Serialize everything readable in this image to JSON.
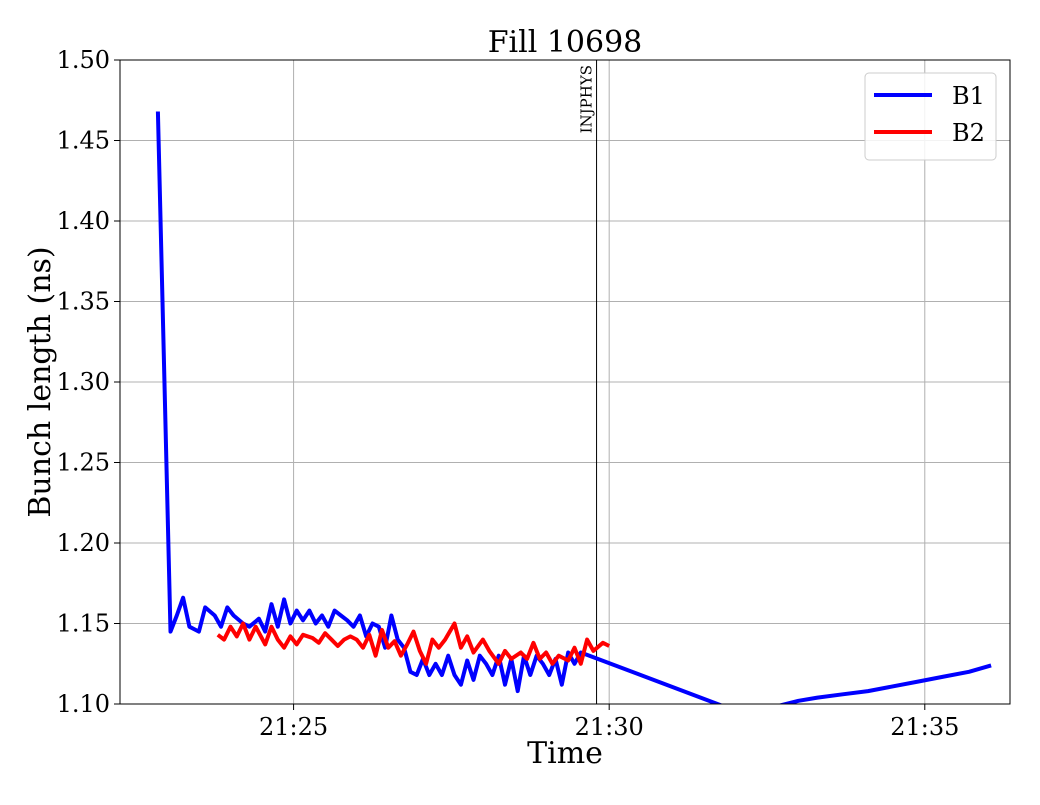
{
  "chart_data": {
    "type": "line",
    "title": "Fill 10698",
    "xlabel": "Time",
    "ylabel": "Bunch length (ns)",
    "x_unit": "minutes after 21:00",
    "xlim": [
      22.25,
      36.35
    ],
    "ylim": [
      1.1,
      1.5
    ],
    "x_ticks": [
      {
        "value": 25,
        "label": "21:25"
      },
      {
        "value": 30,
        "label": "21:30"
      },
      {
        "value": 35,
        "label": "21:35"
      }
    ],
    "y_ticks": [
      {
        "value": 1.1,
        "label": "1.10"
      },
      {
        "value": 1.15,
        "label": "1.15"
      },
      {
        "value": 1.2,
        "label": "1.20"
      },
      {
        "value": 1.25,
        "label": "1.25"
      },
      {
        "value": 1.3,
        "label": "1.30"
      },
      {
        "value": 1.35,
        "label": "1.35"
      },
      {
        "value": 1.4,
        "label": "1.40"
      },
      {
        "value": 1.45,
        "label": "1.45"
      },
      {
        "value": 1.5,
        "label": "1.50"
      }
    ],
    "grid": true,
    "legend_position": "top-right",
    "vertical_markers": [
      {
        "x": 29.8,
        "label": "INJPHYS"
      }
    ],
    "series": [
      {
        "name": "B1",
        "color": "#0000ff",
        "points": [
          [
            22.85,
            1.468
          ],
          [
            23.05,
            1.145
          ],
          [
            23.15,
            1.155
          ],
          [
            23.25,
            1.166
          ],
          [
            23.35,
            1.148
          ],
          [
            23.5,
            1.145
          ],
          [
            23.6,
            1.16
          ],
          [
            23.75,
            1.155
          ],
          [
            23.85,
            1.148
          ],
          [
            23.95,
            1.16
          ],
          [
            24.05,
            1.155
          ],
          [
            24.2,
            1.15
          ],
          [
            24.3,
            1.148
          ],
          [
            24.45,
            1.153
          ],
          [
            24.55,
            1.145
          ],
          [
            24.65,
            1.162
          ],
          [
            24.75,
            1.148
          ],
          [
            24.85,
            1.165
          ],
          [
            24.95,
            1.15
          ],
          [
            25.05,
            1.158
          ],
          [
            25.15,
            1.152
          ],
          [
            25.25,
            1.158
          ],
          [
            25.35,
            1.15
          ],
          [
            25.45,
            1.155
          ],
          [
            25.55,
            1.148
          ],
          [
            25.65,
            1.158
          ],
          [
            25.75,
            1.155
          ],
          [
            25.85,
            1.152
          ],
          [
            25.95,
            1.148
          ],
          [
            26.05,
            1.155
          ],
          [
            26.15,
            1.142
          ],
          [
            26.25,
            1.15
          ],
          [
            26.35,
            1.148
          ],
          [
            26.45,
            1.135
          ],
          [
            26.55,
            1.155
          ],
          [
            26.65,
            1.14
          ],
          [
            26.75,
            1.135
          ],
          [
            26.85,
            1.12
          ],
          [
            26.95,
            1.118
          ],
          [
            27.05,
            1.128
          ],
          [
            27.15,
            1.118
          ],
          [
            27.25,
            1.125
          ],
          [
            27.35,
            1.118
          ],
          [
            27.45,
            1.13
          ],
          [
            27.55,
            1.118
          ],
          [
            27.65,
            1.112
          ],
          [
            27.75,
            1.127
          ],
          [
            27.85,
            1.115
          ],
          [
            27.95,
            1.13
          ],
          [
            28.05,
            1.125
          ],
          [
            28.15,
            1.118
          ],
          [
            28.25,
            1.13
          ],
          [
            28.35,
            1.112
          ],
          [
            28.45,
            1.128
          ],
          [
            28.55,
            1.108
          ],
          [
            28.65,
            1.13
          ],
          [
            28.75,
            1.118
          ],
          [
            28.85,
            1.13
          ],
          [
            28.95,
            1.125
          ],
          [
            29.05,
            1.118
          ],
          [
            29.15,
            1.128
          ],
          [
            29.25,
            1.112
          ],
          [
            29.35,
            1.132
          ],
          [
            29.45,
            1.125
          ],
          [
            29.55,
            1.132
          ],
          [
            31.85,
            1.098
          ],
          [
            32.7,
            1.099
          ],
          [
            33.0,
            1.102
          ],
          [
            33.3,
            1.104
          ],
          [
            33.7,
            1.106
          ],
          [
            34.1,
            1.108
          ],
          [
            34.5,
            1.111
          ],
          [
            34.9,
            1.114
          ],
          [
            35.3,
            1.117
          ],
          [
            35.7,
            1.12
          ],
          [
            36.05,
            1.124
          ]
        ]
      },
      {
        "name": "B2",
        "color": "#ff0000",
        "points": [
          [
            23.8,
            1.143
          ],
          [
            23.9,
            1.14
          ],
          [
            24.0,
            1.148
          ],
          [
            24.1,
            1.142
          ],
          [
            24.2,
            1.15
          ],
          [
            24.3,
            1.14
          ],
          [
            24.4,
            1.148
          ],
          [
            24.55,
            1.137
          ],
          [
            24.65,
            1.148
          ],
          [
            24.75,
            1.14
          ],
          [
            24.85,
            1.135
          ],
          [
            24.95,
            1.142
          ],
          [
            25.05,
            1.137
          ],
          [
            25.15,
            1.143
          ],
          [
            25.3,
            1.141
          ],
          [
            25.4,
            1.138
          ],
          [
            25.5,
            1.144
          ],
          [
            25.6,
            1.14
          ],
          [
            25.7,
            1.136
          ],
          [
            25.8,
            1.14
          ],
          [
            25.9,
            1.142
          ],
          [
            26.0,
            1.14
          ],
          [
            26.1,
            1.135
          ],
          [
            26.2,
            1.143
          ],
          [
            26.3,
            1.13
          ],
          [
            26.4,
            1.146
          ],
          [
            26.5,
            1.135
          ],
          [
            26.6,
            1.139
          ],
          [
            26.7,
            1.13
          ],
          [
            26.8,
            1.137
          ],
          [
            26.9,
            1.145
          ],
          [
            27.0,
            1.133
          ],
          [
            27.1,
            1.125
          ],
          [
            27.2,
            1.14
          ],
          [
            27.3,
            1.135
          ],
          [
            27.4,
            1.14
          ],
          [
            27.55,
            1.15
          ],
          [
            27.65,
            1.135
          ],
          [
            27.75,
            1.142
          ],
          [
            27.85,
            1.132
          ],
          [
            28.0,
            1.14
          ],
          [
            28.1,
            1.133
          ],
          [
            28.25,
            1.125
          ],
          [
            28.35,
            1.133
          ],
          [
            28.45,
            1.128
          ],
          [
            28.6,
            1.132
          ],
          [
            28.7,
            1.128
          ],
          [
            28.8,
            1.138
          ],
          [
            28.9,
            1.128
          ],
          [
            29.0,
            1.132
          ],
          [
            29.1,
            1.125
          ],
          [
            29.2,
            1.13
          ],
          [
            29.35,
            1.127
          ],
          [
            29.45,
            1.135
          ],
          [
            29.55,
            1.125
          ],
          [
            29.65,
            1.14
          ],
          [
            29.75,
            1.133
          ],
          [
            29.9,
            1.138
          ],
          [
            30.0,
            1.136
          ]
        ]
      }
    ]
  }
}
